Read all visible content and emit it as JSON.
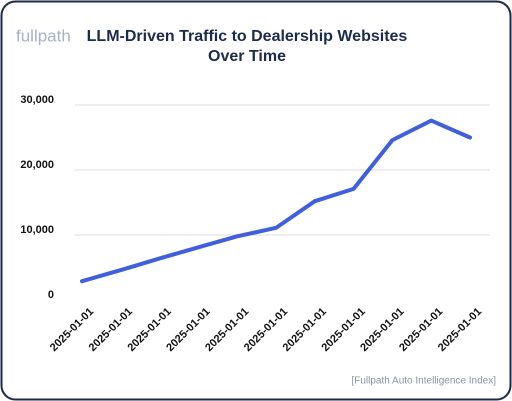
{
  "logo": "fullpath",
  "chart_data": {
    "type": "line",
    "title": "LLM-Driven Traffic to Dealership Websites Over Time",
    "x": [
      "2025-01-01",
      "2025-01-01",
      "2025-01-01",
      "2025-01-01",
      "2025-01-01",
      "2025-01-01",
      "2025-01-01",
      "2025-01-01",
      "2025-01-01",
      "2025-01-01",
      "2025-01-01"
    ],
    "values": [
      2900,
      4600,
      6400,
      8100,
      9800,
      11100,
      15200,
      17100,
      24600,
      27600,
      25000
    ],
    "color": "#3f5fdc",
    "ylim": [
      0,
      30000
    ],
    "yticks": [
      0,
      {
        "value": 10000,
        "label": "10,000"
      },
      {
        "value": 20000,
        "label": "20,000"
      },
      {
        "value": 30000,
        "label": "30,000"
      }
    ],
    "grid": true,
    "source": "[Fullpath Auto Intelligence Index]"
  }
}
